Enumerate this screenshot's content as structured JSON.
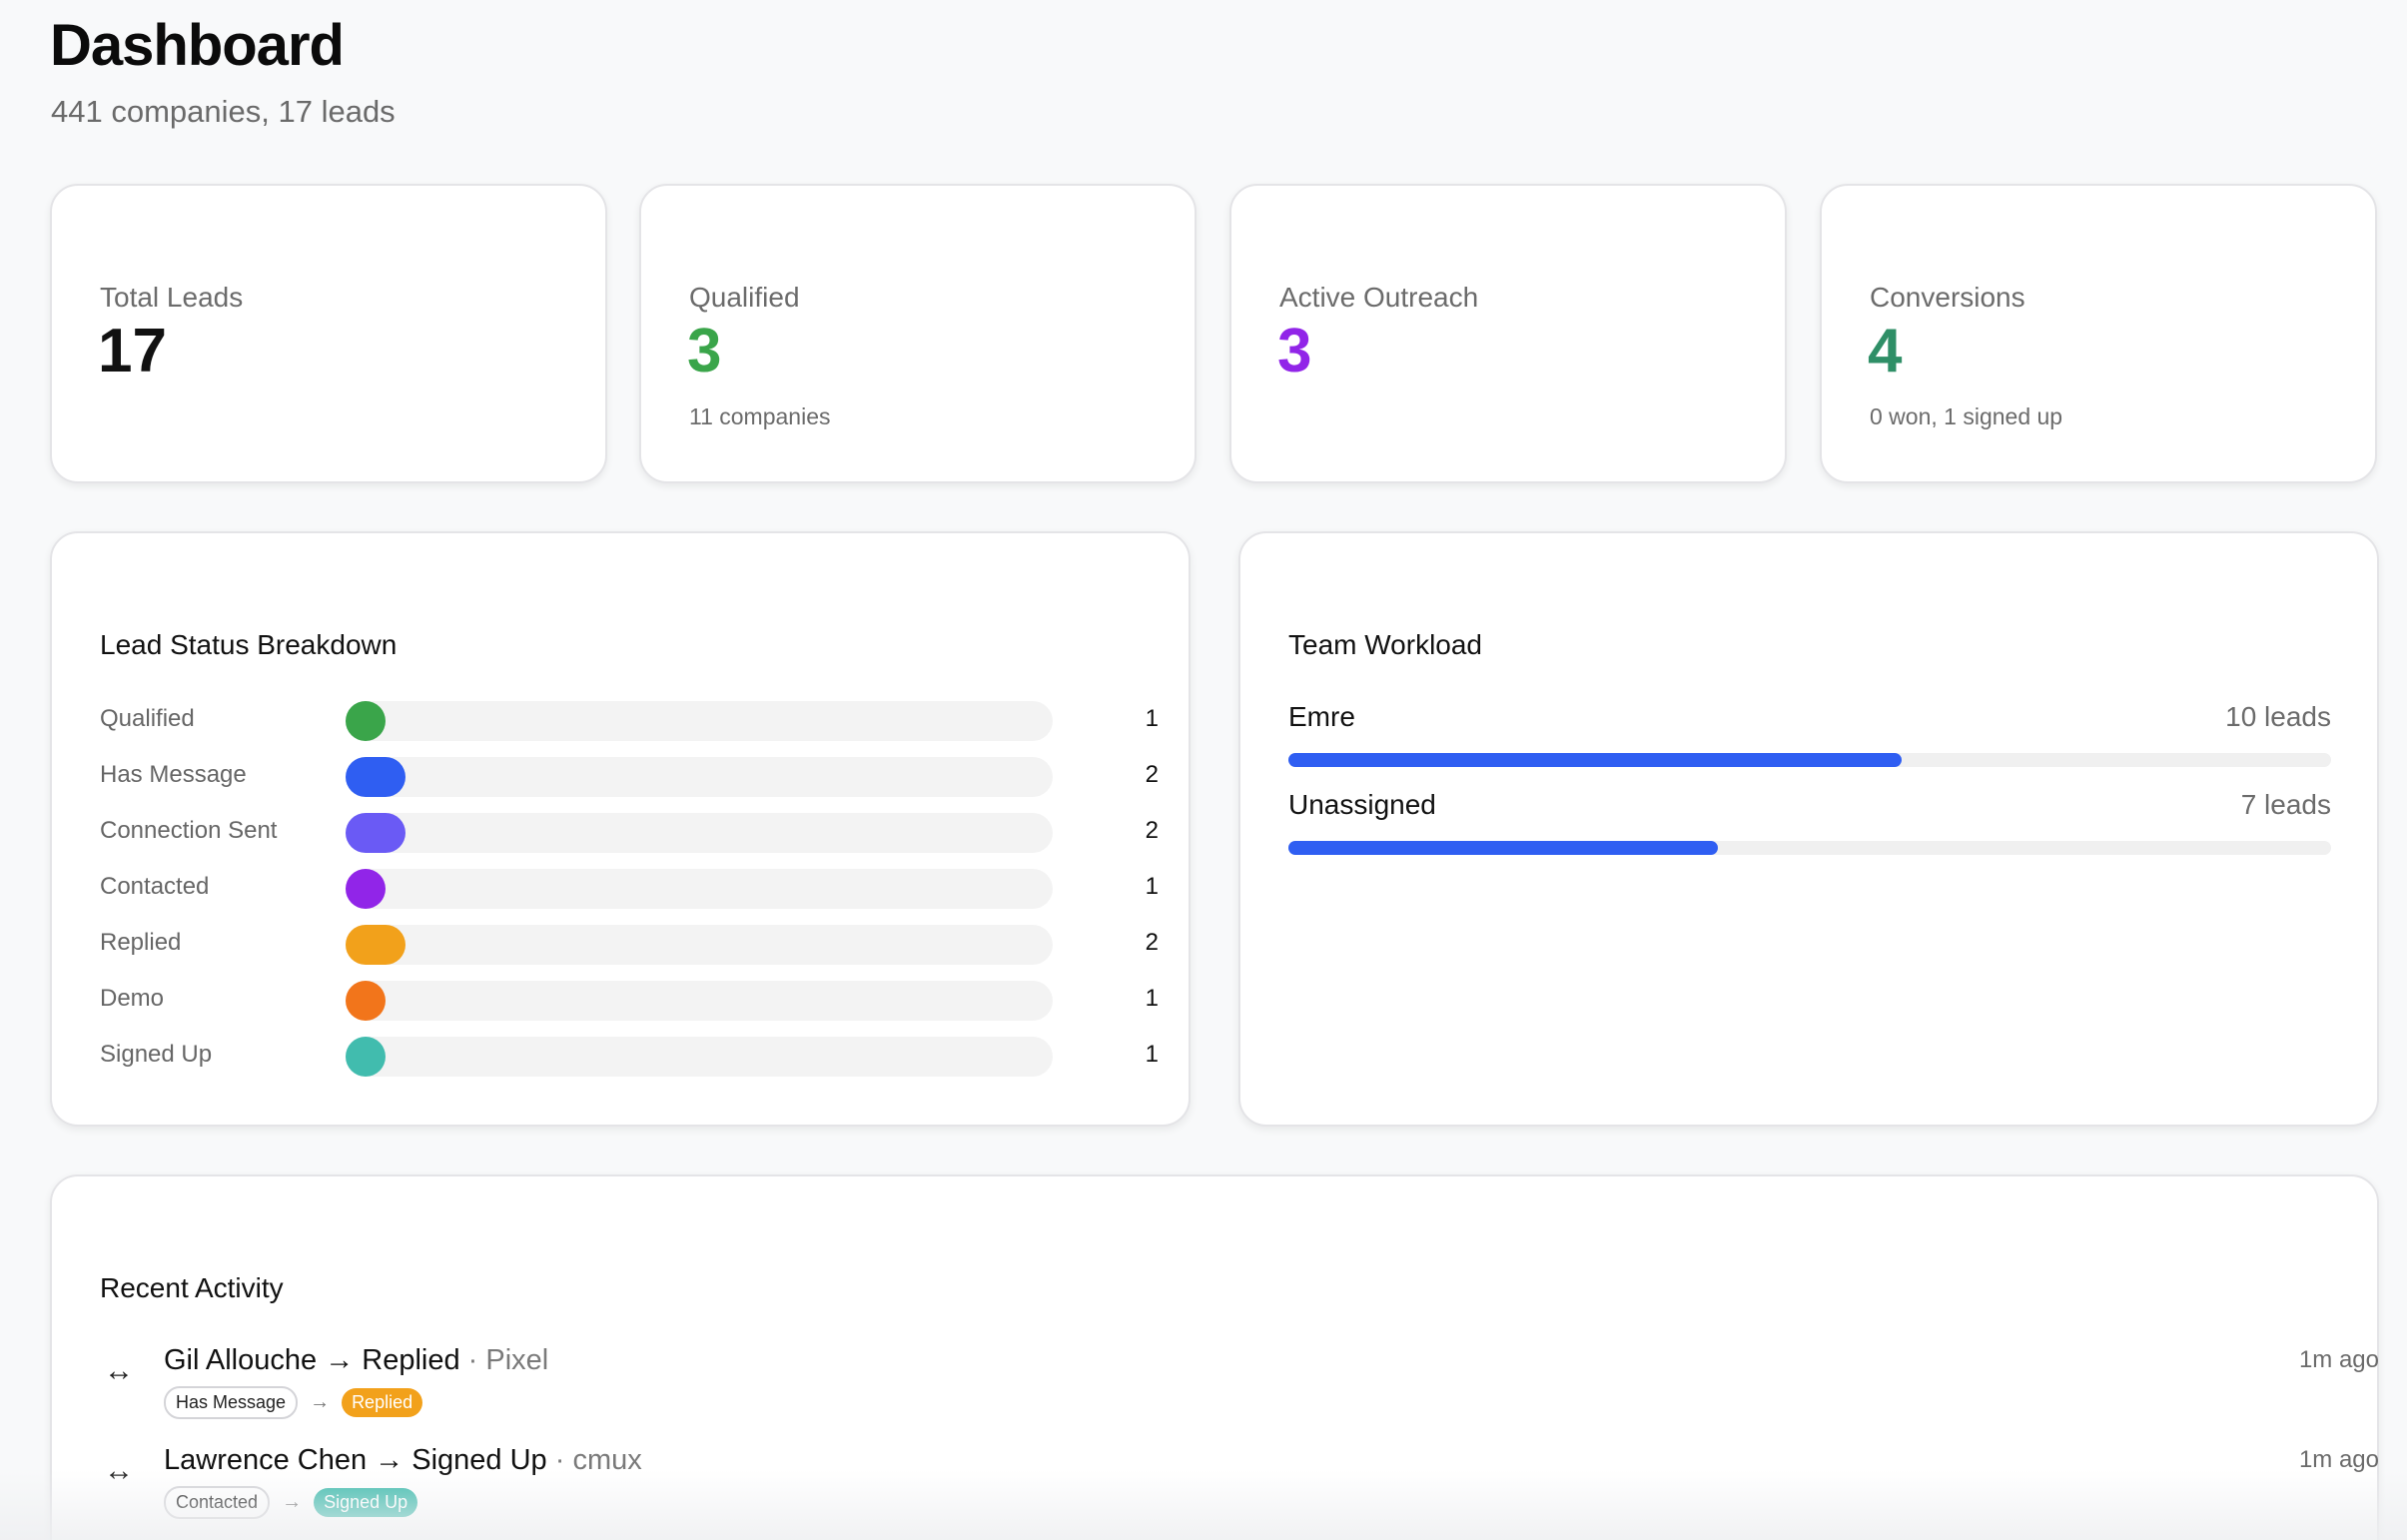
{
  "header": {
    "title": "Dashboard",
    "subtitle": "441 companies, 17 leads"
  },
  "stats": [
    {
      "label": "Total Leads",
      "value": "17",
      "sub": "",
      "color": "#111111"
    },
    {
      "label": "Qualified",
      "value": "3",
      "sub": "11 companies",
      "color": "#3aa54a"
    },
    {
      "label": "Active Outreach",
      "value": "3",
      "sub": "",
      "color": "#9125e8"
    },
    {
      "label": "Conversions",
      "value": "4",
      "sub": "0 won, 1 signed up",
      "color": "#2f8f67"
    }
  ],
  "lead_status": {
    "title": "Lead Status Breakdown",
    "max": 17,
    "rows": [
      {
        "label": "Qualified",
        "count": "1",
        "value": 1,
        "color": "#3aa54a"
      },
      {
        "label": "Has Message",
        "count": "2",
        "value": 2,
        "color": "#2f5ef2"
      },
      {
        "label": "Connection Sent",
        "count": "2",
        "value": 2,
        "color": "#6a5af5"
      },
      {
        "label": "Contacted",
        "count": "1",
        "value": 1,
        "color": "#9125e8"
      },
      {
        "label": "Replied",
        "count": "2",
        "value": 2,
        "color": "#f2a11b"
      },
      {
        "label": "Demo",
        "count": "1",
        "value": 1,
        "color": "#f2751b"
      },
      {
        "label": "Signed Up",
        "count": "1",
        "value": 1,
        "color": "#41bcae"
      }
    ]
  },
  "team_workload": {
    "title": "Team Workload",
    "rows": [
      {
        "name": "Emre",
        "count": "10 leads",
        "fraction": 0.588
      },
      {
        "name": "Unassigned",
        "count": "7 leads",
        "fraction": 0.412
      }
    ]
  },
  "recent_activity": {
    "title": "Recent Activity",
    "items": [
      {
        "icon": "swap-arrows-icon",
        "text": "Gil Allouche → Replied",
        "company": "· Pixel",
        "time": "1m ago",
        "from": "Has Message",
        "to": "Replied",
        "to_color": "#f2a11b"
      },
      {
        "icon": "swap-arrows-icon",
        "text": "Lawrence Chen → Signed Up",
        "company": "· cmux",
        "time": "1m ago",
        "from": "Contacted",
        "to": "Signed Up",
        "to_color": "#41bcae"
      }
    ]
  }
}
